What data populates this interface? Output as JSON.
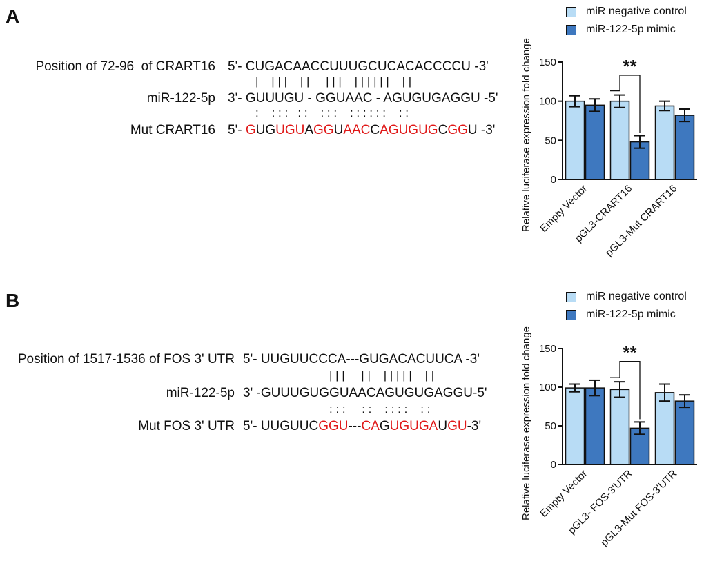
{
  "panel_a": {
    "letter": "A",
    "seq_rows": [
      {
        "label": "Position of 72-96  of CRART16",
        "prefix": "5'- ",
        "segments": [
          {
            "t": "CUGACAACCUUUGCUCACACCCCU",
            "r": false
          }
        ],
        "suffix": " -3'"
      },
      {
        "label": "miR-122-5p",
        "prefix": "3'- ",
        "segments": [
          {
            "t": "GUUUGU - GGUAAC - AGUGUGAGGU",
            "r": false
          }
        ],
        "suffix": " -5'"
      },
      {
        "label": "Mut CRART16",
        "prefix": "5'- ",
        "segments": [
          {
            "t": "G",
            "r": true
          },
          {
            "t": "UG",
            "r": false
          },
          {
            "t": "UGU",
            "r": true
          },
          {
            "t": "A",
            "r": false
          },
          {
            "t": "GG",
            "r": true
          },
          {
            "t": "U",
            "r": false
          },
          {
            "t": "AAC",
            "r": true
          },
          {
            "t": "C",
            "r": false
          },
          {
            "t": "AGUGUG",
            "r": true
          },
          {
            "t": "C",
            "r": false
          },
          {
            "t": "GG",
            "r": true
          },
          {
            "t": "U",
            "r": false
          }
        ],
        "suffix": " -3'"
      }
    ],
    "pair_line": "|    | | |    | |     | | |    | | | | | |    | |",
    "colon_line": ":    : : :   : :    : : :    : : : : : :    : :"
  },
  "panel_b": {
    "letter": "B",
    "seq_rows": [
      {
        "label": "Position of 1517-1536 of FOS 3' UTR",
        "prefix": "5'- ",
        "segments": [
          {
            "t": "UUGUUCCCA---GUGACACUUCA",
            "r": false
          }
        ],
        "suffix": " -3'"
      },
      {
        "label": "miR-122-5p",
        "prefix": "3' -",
        "segments": [
          {
            "t": "GUUUGUGGUAACAGUGUGAGGU",
            "r": false
          }
        ],
        "suffix": "-5'"
      },
      {
        "label": "Mut FOS 3' UTR",
        "prefix": "5'- ",
        "segments": [
          {
            "t": "UUGUUC",
            "r": false
          },
          {
            "t": "GGU",
            "r": true
          },
          {
            "t": "---",
            "r": false
          },
          {
            "t": "CA",
            "r": true
          },
          {
            "t": "G",
            "r": false
          },
          {
            "t": "UGUGA",
            "r": true
          },
          {
            "t": "U",
            "r": false
          },
          {
            "t": "GU",
            "r": true
          },
          {
            "t": "-3'",
            "r": false
          }
        ],
        "suffix": ""
      }
    ],
    "pair_line": "| | |     | |    | | | | |    | |",
    "colon_line": ": : :     : :    : : : :    : :"
  },
  "chart_data": [
    {
      "type": "bar",
      "title": "",
      "xlabel": "",
      "ylabel": "Relative luciferase expression fold change",
      "ylim": [
        0,
        150
      ],
      "yticks": [
        0,
        50,
        100,
        150
      ],
      "categories": [
        "Empty Vector",
        "pGL3-CRART16",
        "pGL3-Mut CRART16"
      ],
      "series": [
        {
          "name": "miR negative control",
          "values": [
            100,
            100,
            94
          ],
          "errors": [
            7,
            8,
            6
          ],
          "color": "#b8dcf5"
        },
        {
          "name": "miR-122-5p mimic",
          "values": [
            95,
            48,
            82
          ],
          "errors": [
            8,
            8,
            8
          ],
          "color": "#3e78bf"
        }
      ],
      "annotation": {
        "text": "**",
        "category_index": 1
      }
    },
    {
      "type": "bar",
      "title": "",
      "xlabel": "",
      "ylabel": "Relative luciferase expression fold change",
      "ylim": [
        0,
        150
      ],
      "yticks": [
        0,
        50,
        100,
        150
      ],
      "categories": [
        "Empty Vector",
        "pGL3- FOS-3'UTR",
        "pGL3-Mut FOS-3'UTR"
      ],
      "series": [
        {
          "name": "miR negative control",
          "values": [
            99,
            97,
            93
          ],
          "errors": [
            5,
            10,
            11
          ],
          "color": "#b8dcf5"
        },
        {
          "name": "miR-122-5p mimic",
          "values": [
            99,
            47,
            82
          ],
          "errors": [
            10,
            8,
            8
          ],
          "color": "#3e78bf"
        }
      ],
      "annotation": {
        "text": "**",
        "category_index": 1
      }
    }
  ]
}
